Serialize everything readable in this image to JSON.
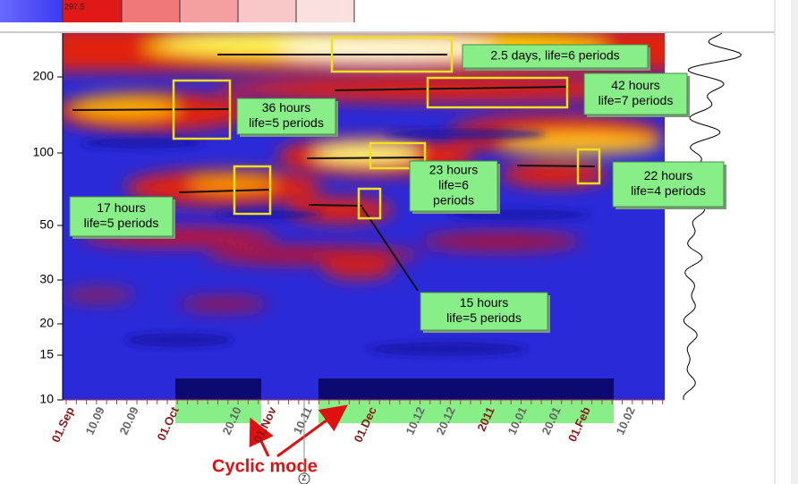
{
  "colorbar": {
    "label": "297.5"
  },
  "y_axis": {
    "ticks": [
      "200",
      "100",
      "50",
      "30",
      "20",
      "15",
      "10"
    ]
  },
  "x_axis": {
    "ticks": [
      "01.Sep",
      "10.09",
      "20.09",
      "01.Oct",
      "20.10",
      "01.Nov",
      "10.11",
      "01.Dec",
      "10.12",
      "20.12",
      "2011",
      "10.01",
      "20.01",
      "01.Feb",
      "10.02"
    ]
  },
  "annotations": [
    {
      "lines": [
        "2.5 days, life=6 periods"
      ]
    },
    {
      "lines": [
        "42 hours",
        "life=7 periods"
      ]
    },
    {
      "lines": [
        "36 hours",
        "life=5 periods"
      ]
    },
    {
      "lines": [
        "23 hours",
        "life=6",
        "periods"
      ]
    },
    {
      "lines": [
        "22 hours",
        "life=4 periods"
      ]
    },
    {
      "lines": [
        "17 hours",
        "life=5 periods"
      ]
    },
    {
      "lines": [
        "15 hours",
        "life=5 periods"
      ]
    }
  ],
  "caption": "Cyclic mode",
  "marker": "Z"
}
